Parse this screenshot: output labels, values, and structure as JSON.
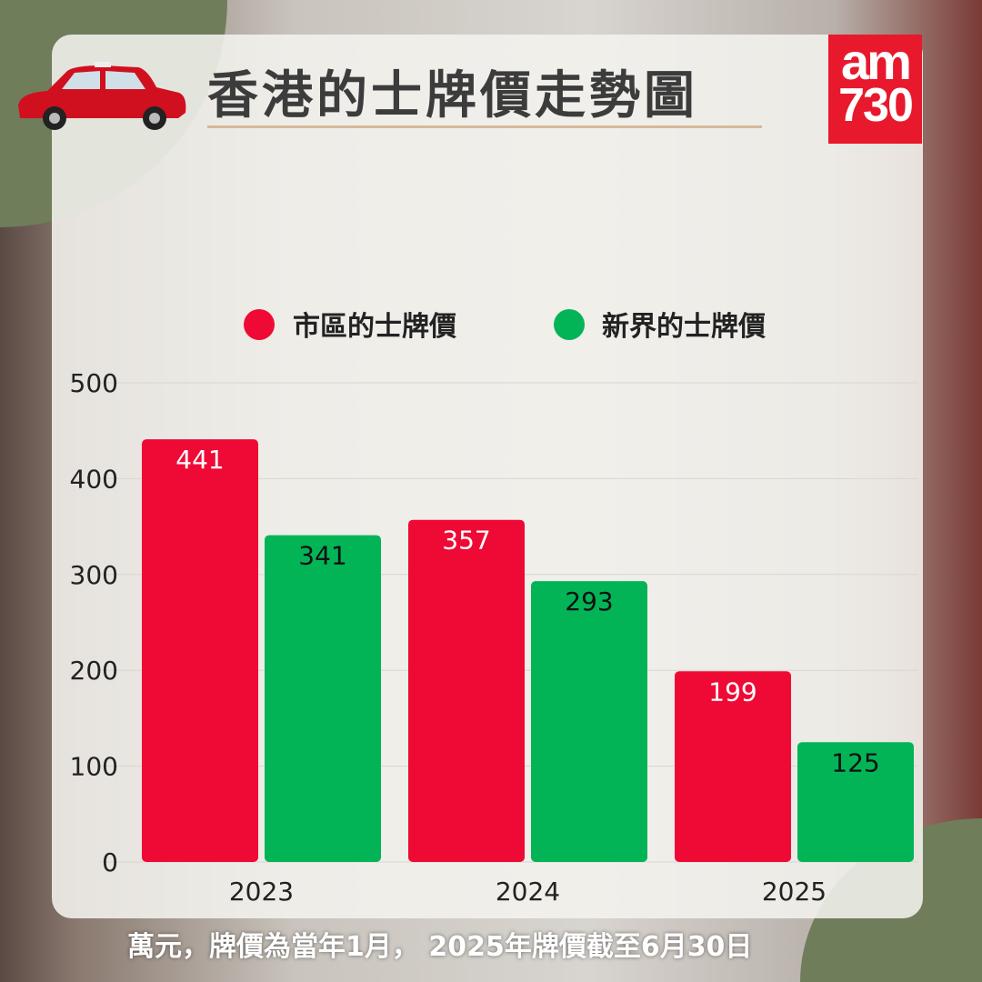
{
  "header": {
    "title": "香港的士牌價走勢圖"
  },
  "logo": {
    "text": "am730",
    "line1": "am",
    "line2": "730"
  },
  "footer": {
    "note": "萬元，牌價為當年1月， 2025年牌價截至6月30日"
  },
  "colors": {
    "urban": "#ef0a36",
    "nt": "#03b457",
    "panel": "#f4f2ee"
  },
  "chart_data": {
    "type": "bar",
    "categories": [
      "2023",
      "2024",
      "2025"
    ],
    "series": [
      {
        "name": "市區的士牌價",
        "color": "#ef0a36",
        "values": [
          441,
          357,
          199
        ]
      },
      {
        "name": "新界的士牌價",
        "color": "#03b457",
        "values": [
          341,
          293,
          125
        ]
      }
    ],
    "ylim": [
      0,
      500
    ],
    "yticks": [
      0,
      100,
      200,
      300,
      400,
      500
    ],
    "grid": true,
    "legend": "top",
    "unit": "萬元"
  }
}
